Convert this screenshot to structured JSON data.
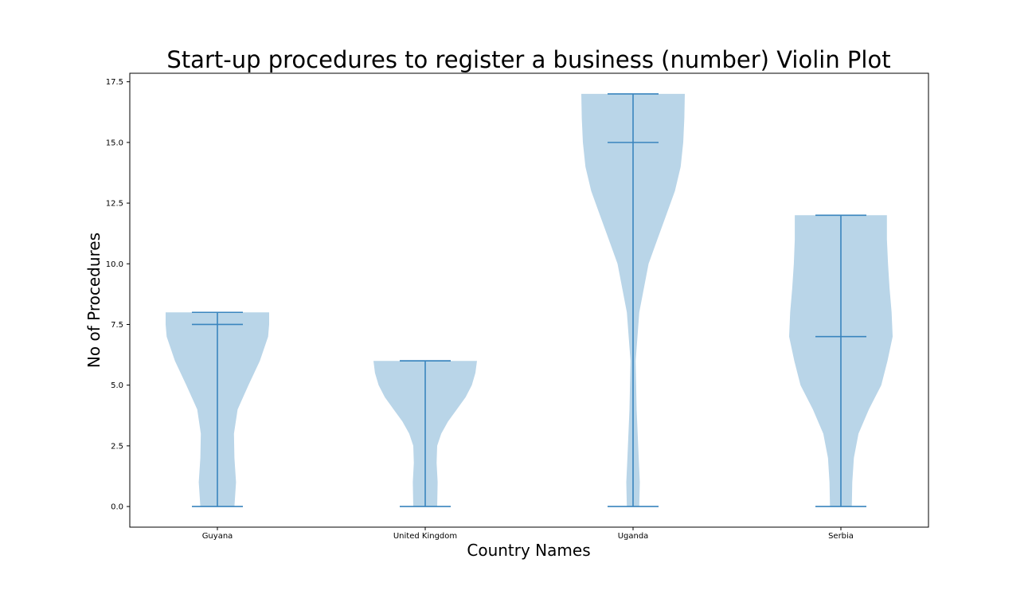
{
  "chart_data": {
    "type": "violin",
    "title": "Start-up procedures to register a business (number) Violin Plot",
    "xlabel": "Country Names",
    "ylabel": "No of Procedures",
    "categories": [
      "Guyana",
      "United Kingdom",
      "Uganda",
      "Serbia"
    ],
    "ylim": [
      -0.85,
      17.85
    ],
    "yticks": [
      "0.0",
      "2.5",
      "5.0",
      "7.5",
      "10.0",
      "12.5",
      "15.0",
      "17.5"
    ],
    "ytick_values": [
      0,
      2.5,
      5,
      7.5,
      10,
      12.5,
      15,
      17.5
    ],
    "grid": false,
    "colors": {
      "body": "#b9d5e8",
      "lines": "#3a85be"
    },
    "series": [
      {
        "category": "Guyana",
        "min": 0,
        "median": 7.5,
        "max": 8,
        "density_profile": [
          [
            0,
            0.33
          ],
          [
            1,
            0.36
          ],
          [
            2,
            0.33
          ],
          [
            3,
            0.32
          ],
          [
            4,
            0.39
          ],
          [
            5,
            0.6
          ],
          [
            6,
            0.82
          ],
          [
            7,
            0.98
          ],
          [
            7.5,
            1.0
          ],
          [
            8,
            1.0
          ]
        ]
      },
      {
        "category": "United Kingdom",
        "min": 0,
        "median": 6,
        "max": 6,
        "density_profile": [
          [
            0,
            0.23
          ],
          [
            1,
            0.24
          ],
          [
            1.8,
            0.22
          ],
          [
            2.5,
            0.23
          ],
          [
            3,
            0.31
          ],
          [
            3.5,
            0.44
          ],
          [
            4,
            0.61
          ],
          [
            4.5,
            0.78
          ],
          [
            5,
            0.9
          ],
          [
            5.5,
            0.97
          ],
          [
            6,
            1.0
          ]
        ]
      },
      {
        "category": "Uganda",
        "min": 0,
        "median": 15,
        "max": 17,
        "density_profile": [
          [
            0,
            0.12
          ],
          [
            1,
            0.13
          ],
          [
            2,
            0.11
          ],
          [
            4,
            0.07
          ],
          [
            6,
            0.05
          ],
          [
            8,
            0.12
          ],
          [
            10,
            0.3
          ],
          [
            11,
            0.47
          ],
          [
            12,
            0.64
          ],
          [
            13,
            0.81
          ],
          [
            14,
            0.92
          ],
          [
            15,
            0.97
          ],
          [
            16,
            0.99
          ],
          [
            17,
            1.0
          ]
        ]
      },
      {
        "category": "Serbia",
        "min": 0,
        "median": 7,
        "max": 12,
        "density_profile": [
          [
            0,
            0.21
          ],
          [
            1,
            0.22
          ],
          [
            2,
            0.25
          ],
          [
            3,
            0.34
          ],
          [
            4,
            0.54
          ],
          [
            5,
            0.78
          ],
          [
            6,
            0.9
          ],
          [
            7,
            1.0
          ],
          [
            8,
            0.98
          ],
          [
            9,
            0.94
          ],
          [
            10,
            0.91
          ],
          [
            11,
            0.89
          ],
          [
            12,
            0.89
          ]
        ]
      }
    ]
  }
}
